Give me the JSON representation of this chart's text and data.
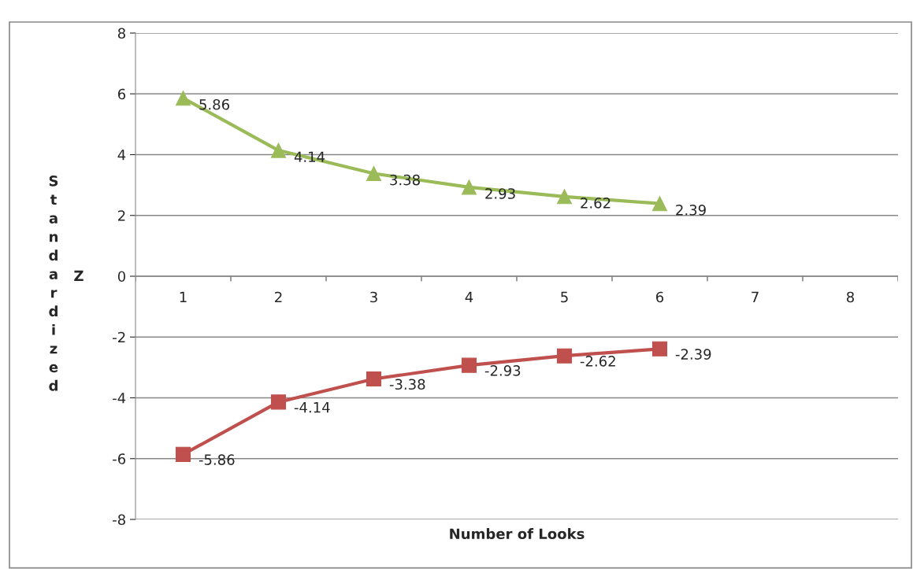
{
  "chart_data": {
    "type": "line",
    "xlabel": "Number of Looks",
    "ylabel": "Standardized Z",
    "categories": [
      "1",
      "2",
      "3",
      "4",
      "5",
      "6",
      "7",
      "8"
    ],
    "series": [
      {
        "color": "#9bbb59",
        "marker": "triangle",
        "values": [
          5.86,
          4.14,
          3.38,
          2.93,
          2.62,
          2.39,
          null,
          null
        ]
      },
      {
        "color": "#c0504d",
        "marker": "square",
        "values": [
          -5.86,
          -4.14,
          -3.38,
          -2.93,
          -2.62,
          -2.39,
          null,
          null
        ]
      }
    ],
    "ylim": [
      -8,
      8
    ],
    "yticks": [
      -8,
      -6,
      -4,
      -2,
      0,
      2,
      4,
      6,
      8
    ],
    "grid": "y",
    "data_labels": true,
    "line_style": "solid",
    "legend": false
  }
}
